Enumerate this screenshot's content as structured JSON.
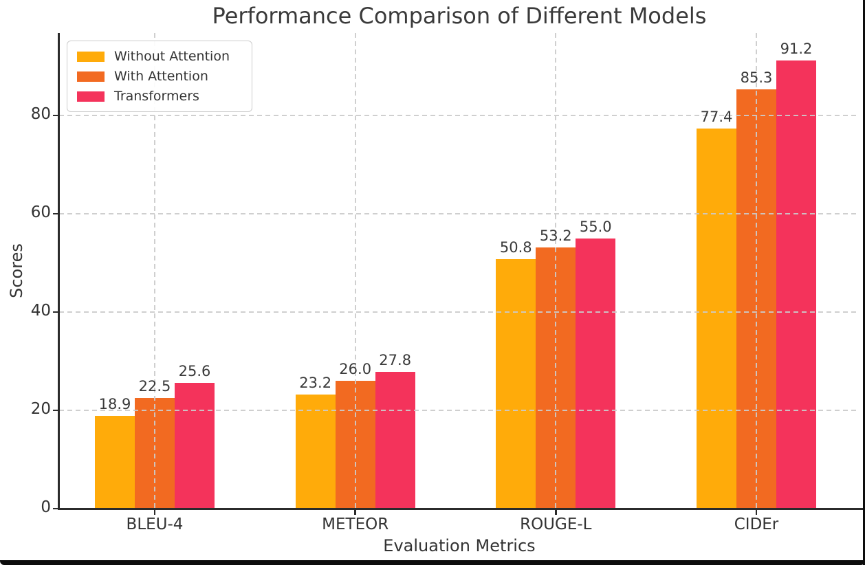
{
  "chart_data": {
    "type": "bar",
    "title": "Performance Comparison of Different Models",
    "xlabel": "Evaluation Metrics",
    "ylabel": "Scores",
    "categories": [
      "BLEU-4",
      "METEOR",
      "ROUGE-L",
      "CIDEr"
    ],
    "series": [
      {
        "name": "Without Attention",
        "color": "#FFAB0A",
        "values": [
          18.9,
          23.2,
          50.8,
          77.4
        ]
      },
      {
        "name": "With Attention",
        "color": "#F26A21",
        "values": [
          22.5,
          26.0,
          53.2,
          85.3
        ]
      },
      {
        "name": "Transformers",
        "color": "#F4335B",
        "values": [
          25.6,
          27.8,
          55.0,
          91.2
        ]
      }
    ],
    "bar_value_labels": [
      [
        "18.9",
        "23.2",
        "50.8",
        "77.4"
      ],
      [
        "22.5",
        "26.0",
        "53.2",
        "85.3"
      ],
      [
        "25.6",
        "27.8",
        "55.0",
        "91.2"
      ]
    ],
    "yticks": [
      "0",
      "20",
      "40",
      "60",
      "80"
    ],
    "ylim": [
      0,
      96.8
    ],
    "grid": {
      "style": "dashed",
      "color": "#cdcdcd",
      "horizontal": true,
      "vertical": true,
      "above_bars": true
    },
    "legend": {
      "position": "upper-left",
      "entries": [
        "Without Attention",
        "With Attention",
        "Transformers"
      ]
    },
    "colors": {
      "text": "#333333",
      "title": "#3a3a3a",
      "spine": "#2b2b2b",
      "frame": "#0d0d0d"
    }
  }
}
